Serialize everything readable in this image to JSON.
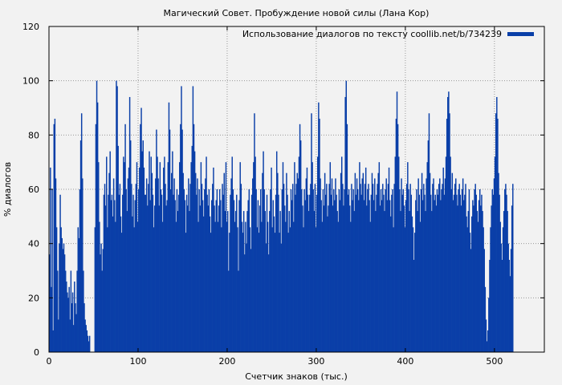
{
  "chart_data": {
    "type": "bar",
    "title": "Магический Совет. Пробуждение новой силы (Лана Кор)",
    "xlabel": "Счетчик знаков (тыс.)",
    "ylabel": "% диалогов",
    "xlim": [
      0,
      556
    ],
    "ylim": [
      0,
      120
    ],
    "x_ticks": [
      0,
      100,
      200,
      300,
      400,
      500
    ],
    "y_ticks": [
      0,
      20,
      40,
      60,
      80,
      100,
      120
    ],
    "grid": true,
    "legend_position": "top-right",
    "series": [
      {
        "name": "Использование диалогов по тексту coollib.net/b/734239",
        "color": "#0a3fa8",
        "x_start": 1,
        "x_step": 1,
        "y": [
          36,
          68,
          24,
          60,
          8,
          84,
          86,
          64,
          46,
          30,
          12,
          40,
          58,
          46,
          42,
          38,
          40,
          36,
          30,
          26,
          22,
          20,
          24,
          12,
          30,
          18,
          22,
          10,
          26,
          18,
          14,
          30,
          46,
          42,
          60,
          78,
          88,
          64,
          30,
          18,
          12,
          10,
          8,
          6,
          4,
          6,
          0,
          0,
          0,
          0,
          0,
          46,
          84,
          100,
          92,
          70,
          48,
          36,
          40,
          30,
          38,
          58,
          62,
          54,
          72,
          46,
          58,
          66,
          74,
          56,
          58,
          50,
          64,
          56,
          48,
          100,
          98,
          76,
          58,
          62,
          50,
          44,
          58,
          72,
          70,
          84,
          60,
          52,
          64,
          68,
          94,
          78,
          62,
          50,
          58,
          46,
          56,
          62,
          70,
          48,
          60,
          68,
          84,
          90,
          74,
          78,
          68,
          58,
          58,
          64,
          54,
          62,
          74,
          56,
          72,
          66,
          58,
          46,
          54,
          64,
          82,
          72,
          64,
          54,
          70,
          60,
          58,
          48,
          68,
          72,
          62,
          54,
          56,
          70,
          92,
          82,
          60,
          66,
          74,
          58,
          64,
          56,
          48,
          60,
          52,
          58,
          70,
          84,
          98,
          82,
          66,
          60,
          56,
          44,
          58,
          54,
          64,
          52,
          62,
          70,
          76,
          98,
          84,
          74,
          66,
          58,
          64,
          48,
          60,
          54,
          70,
          62,
          56,
          50,
          60,
          64,
          72,
          58,
          54,
          60,
          50,
          44,
          56,
          62,
          68,
          54,
          48,
          56,
          60,
          48,
          54,
          60,
          56,
          46,
          62,
          58,
          66,
          52,
          70,
          48,
          52,
          30,
          44,
          58,
          64,
          72,
          60,
          56,
          48,
          52,
          58,
          46,
          30,
          56,
          70,
          62,
          48,
          44,
          52,
          36,
          48,
          40,
          52,
          56,
          60,
          46,
          38,
          58,
          64,
          70,
          88,
          72,
          60,
          46,
          56,
          44,
          54,
          60,
          48,
          66,
          74,
          60,
          52,
          40,
          58,
          48,
          36,
          52,
          60,
          68,
          46,
          56,
          50,
          44,
          58,
          74,
          66,
          58,
          44,
          52,
          40,
          60,
          70,
          62,
          54,
          48,
          66,
          58,
          44,
          52,
          46,
          60,
          56,
          62,
          48,
          70,
          58,
          62,
          66,
          64,
          72,
          84,
          78,
          60,
          54,
          46,
          60,
          56,
          64,
          68,
          58,
          52,
          58,
          62,
          88,
          70,
          60,
          52,
          62,
          46,
          58,
          72,
          92,
          86,
          64,
          56,
          48,
          60,
          54,
          66,
          58,
          62,
          50,
          54,
          62,
          70,
          58,
          64,
          54,
          60,
          56,
          64,
          58,
          52,
          48,
          60,
          56,
          66,
          72,
          62,
          54,
          60,
          94,
          100,
          84,
          58,
          60,
          54,
          48,
          62,
          56,
          60,
          52,
          66,
          58,
          64,
          60,
          56,
          70,
          62,
          58,
          64,
          66,
          56,
          62,
          68,
          54,
          60,
          62,
          56,
          48,
          58,
          66,
          62,
          56,
          64,
          52,
          58,
          62,
          66,
          70,
          54,
          60,
          56,
          62,
          58,
          52,
          60,
          64,
          56,
          62,
          68,
          56,
          50,
          58,
          60,
          46,
          62,
          72,
          86,
          96,
          84,
          72,
          60,
          52,
          64,
          58,
          60,
          54,
          46,
          56,
          62,
          70,
          60,
          52,
          62,
          58,
          50,
          46,
          34,
          44,
          56,
          60,
          52,
          64,
          58,
          48,
          60,
          66,
          56,
          62,
          58,
          52,
          64,
          70,
          78,
          88,
          66,
          58,
          52,
          62,
          64,
          56,
          58,
          54,
          60,
          58,
          62,
          64,
          56,
          60,
          62,
          68,
          58,
          64,
          72,
          86,
          94,
          96,
          88,
          72,
          60,
          66,
          56,
          58,
          62,
          64,
          58,
          54,
          60,
          62,
          58,
          54,
          60,
          64,
          56,
          58,
          62,
          50,
          46,
          52,
          60,
          44,
          38,
          50,
          56,
          54,
          60,
          62,
          58,
          52,
          48,
          56,
          60,
          54,
          58,
          52,
          46,
          38,
          24,
          12,
          4,
          8,
          20,
          34,
          46,
          54,
          60,
          58,
          64,
          72,
          88,
          94,
          86,
          66,
          58,
          48,
          40,
          34,
          46,
          52,
          60,
          62,
          58,
          52,
          40,
          34,
          28,
          38,
          54,
          62
        ]
      }
    ]
  }
}
